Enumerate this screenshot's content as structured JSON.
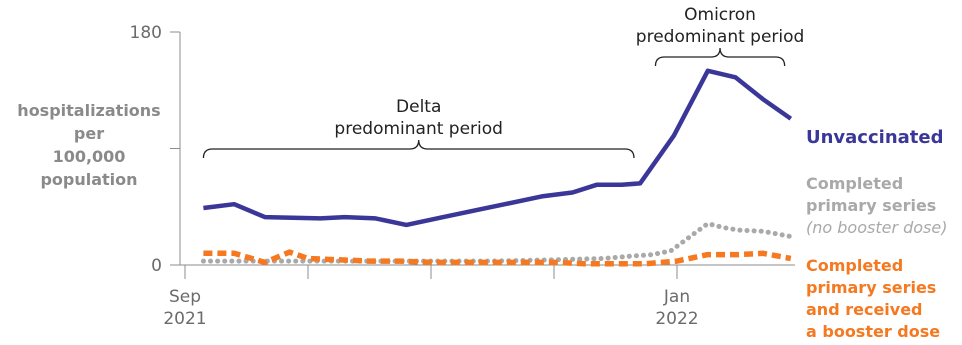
{
  "chart_data": {
    "type": "line",
    "ylabel": [
      "hospitalizations",
      "per",
      "100,000",
      "population"
    ],
    "ylim": [
      0,
      180
    ],
    "yticks": [
      {
        "value": 0,
        "label": "0"
      },
      {
        "value": 180,
        "label": "180"
      }
    ],
    "xlim": [
      0,
      20
    ],
    "xticks": [
      {
        "x": 0,
        "lines": [
          "Sep",
          "2021"
        ]
      },
      {
        "x": 2,
        "lines": []
      },
      {
        "x": 4,
        "lines": []
      },
      {
        "x": 6,
        "lines": []
      },
      {
        "x": 8,
        "lines": [
          "Jan",
          "2022"
        ]
      }
    ],
    "grid": false,
    "legend": "right-of-line-ends",
    "series": [
      {
        "name": "Unvaccinated",
        "label_lines": [
          {
            "text": "Unvaccinated",
            "style": "bold"
          }
        ],
        "color": "#3b3798",
        "dash": "solid",
        "x": [
          0.3,
          0.8,
          1.3,
          2.2,
          2.6,
          3.1,
          3.6,
          4.2,
          4.8,
          5.2,
          5.8,
          6.3,
          6.7,
          7.1,
          7.4,
          7.95,
          8.5,
          8.95,
          9.4,
          9.85
        ],
        "values": [
          44,
          47,
          37,
          36,
          37,
          36,
          31,
          37,
          43,
          47,
          53,
          56,
          62,
          62,
          63,
          100,
          150,
          145,
          128,
          113
        ]
      },
      {
        "name": "Completed primary series (no booster dose)",
        "label_lines": [
          {
            "text": "Completed",
            "style": "bold"
          },
          {
            "text": "primary series",
            "style": "bold"
          },
          {
            "text": "(no booster dose)",
            "style": "italic"
          }
        ],
        "color": "#a9a9a9",
        "dash": "dotted",
        "x": [
          0.3,
          1.3,
          3.0,
          5.0,
          6.0,
          6.8,
          7.3,
          7.6,
          7.9,
          8.3,
          8.5,
          8.75,
          9.0,
          9.4,
          9.85
        ],
        "values": [
          3,
          3,
          3,
          3,
          4,
          5,
          7,
          8,
          11,
          25,
          32,
          29,
          27,
          26,
          22
        ]
      },
      {
        "name": "Completed primary series and received a booster dose",
        "label_lines": [
          {
            "text": "Completed",
            "style": "bold"
          },
          {
            "text": "primary series",
            "style": "bold"
          },
          {
            "text": "and received",
            "style": "bold"
          },
          {
            "text": "a booster dose",
            "style": "bold"
          }
        ],
        "color": "#f47920",
        "dash": "dashed",
        "x": [
          0.3,
          0.8,
          1.3,
          1.7,
          2.0,
          2.5,
          3.0,
          3.5,
          4.0,
          5.0,
          6.0,
          6.5,
          7.0,
          7.5,
          8.0,
          8.5,
          9.0,
          9.4,
          9.85
        ],
        "values": [
          9,
          9,
          2,
          10,
          5,
          4,
          3,
          3,
          2,
          2,
          2,
          1,
          1,
          1,
          3,
          8,
          8,
          9,
          5
        ]
      }
    ],
    "annotations": [
      {
        "lines": [
          "Delta",
          "predominant period"
        ],
        "x_start": 0.3,
        "x_end": 7.3
      },
      {
        "lines": [
          "Omicron",
          "predominant period"
        ],
        "x_start": 7.65,
        "x_end": 9.75
      }
    ]
  }
}
